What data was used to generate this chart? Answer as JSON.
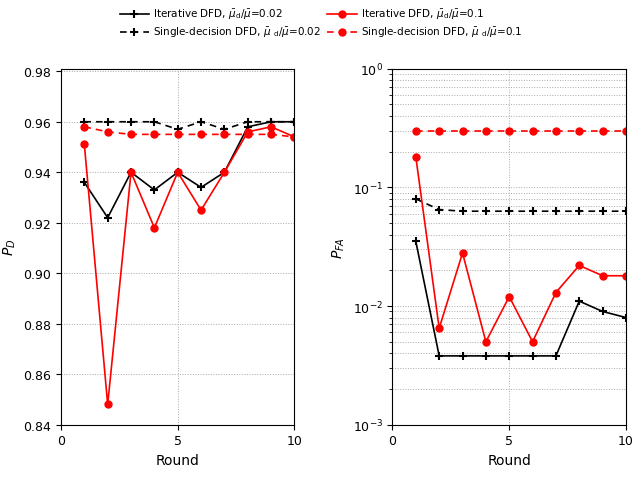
{
  "rounds": [
    1,
    2,
    3,
    4,
    5,
    6,
    7,
    8,
    9,
    10
  ],
  "pd_iter_002": [
    0.936,
    0.922,
    0.94,
    0.933,
    0.94,
    0.934,
    0.94,
    0.958,
    0.96,
    0.96
  ],
  "pd_iter_01": [
    0.951,
    0.848,
    0.94,
    0.918,
    0.94,
    0.925,
    0.94,
    0.956,
    0.958,
    0.954
  ],
  "pd_single_002": [
    0.96,
    0.96,
    0.96,
    0.96,
    0.957,
    0.96,
    0.957,
    0.96,
    0.96,
    0.96
  ],
  "pd_single_01": [
    0.958,
    0.956,
    0.955,
    0.955,
    0.955,
    0.955,
    0.955,
    0.955,
    0.955,
    0.954
  ],
  "pfa_iter_002": [
    0.035,
    0.0038,
    0.0038,
    0.0038,
    0.0038,
    0.0038,
    0.0038,
    0.011,
    0.009,
    0.008
  ],
  "pfa_iter_01": [
    0.18,
    0.0065,
    0.028,
    0.005,
    0.012,
    0.005,
    0.013,
    0.022,
    0.018,
    0.018
  ],
  "pfa_single_002": [
    0.08,
    0.065,
    0.063,
    0.063,
    0.063,
    0.063,
    0.063,
    0.063,
    0.063,
    0.063
  ],
  "pfa_single_01": [
    0.3,
    0.3,
    0.3,
    0.3,
    0.3,
    0.3,
    0.3,
    0.3,
    0.3,
    0.3
  ],
  "color_black": "#000000",
  "color_red": "#ff0000",
  "ylabel_left": "$P_D$",
  "ylabel_right": "$P_{FA}$",
  "xlabel": "Round",
  "ylim_left": [
    0.84,
    0.98
  ],
  "xlim": [
    0,
    10
  ],
  "bg_color": "#f5f5f5"
}
